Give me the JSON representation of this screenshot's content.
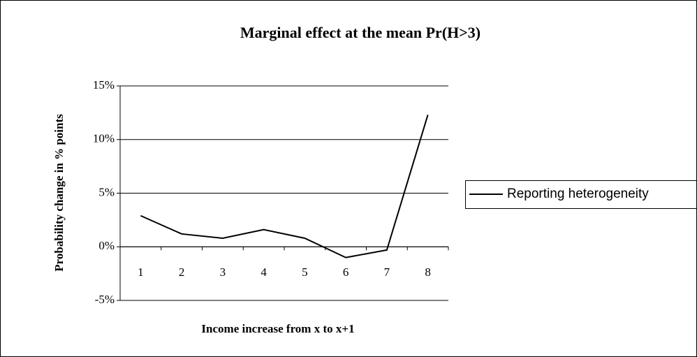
{
  "chart_data": {
    "type": "line",
    "title": "Marginal effect at the mean Pr(H>3)",
    "x_label": "Income increase from x to x+1",
    "y_label": "Probability change in % points",
    "categories": [
      "1",
      "2",
      "3",
      "4",
      "5",
      "6",
      "7",
      "8"
    ],
    "series": [
      {
        "name": "Reporting heterogeneity",
        "color": "#000000",
        "values": [
          2.9,
          1.2,
          0.8,
          1.6,
          0.8,
          -1.0,
          -0.3,
          12.3
        ]
      }
    ],
    "ylim": [
      -5,
      15
    ],
    "yticks": [
      {
        "value": -5,
        "label": "-5%"
      },
      {
        "value": 0,
        "label": "0%"
      },
      {
        "value": 5,
        "label": "5%"
      },
      {
        "value": 10,
        "label": "10%"
      },
      {
        "value": 15,
        "label": "15%"
      }
    ],
    "grid": true,
    "legend": "right"
  }
}
